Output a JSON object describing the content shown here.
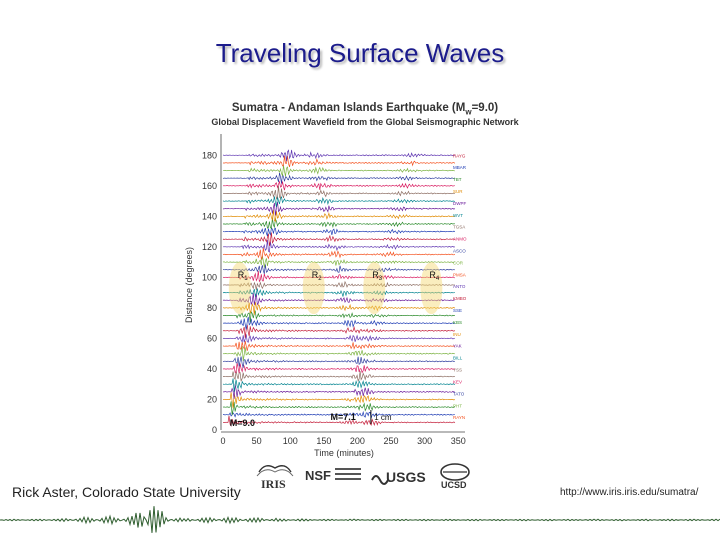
{
  "slide": {
    "title": "Traveling Surface Waves",
    "credit_left": "Rick Aster, Colorado State University",
    "credit_right": "http://www.iris.iris.edu/sumatra/"
  },
  "figure": {
    "title_main": "Sumatra - Andaman Islands Earthquake (M",
    "title_sub_w": "w",
    "title_end": "=9.0)",
    "subtitle": "Global Displacement Wavefield from the Global Seismographic Network",
    "wave_labels": [
      "R",
      "R",
      "R",
      "R"
    ],
    "wave_label_subs": [
      "1",
      "2",
      "3",
      "4"
    ],
    "magnitude_left": "M=9.0",
    "magnitude_right": "M=7.1",
    "scale_label": "1 cm",
    "stations_right": [
      "RAYG",
      "MBAR",
      "TBT",
      "SUR",
      "DWPF",
      "WVT",
      "TGSA",
      "ANMO",
      "ASCO",
      "COR",
      "PMSA",
      "ANTO",
      "KMBO",
      "SSE",
      "KBS",
      "INU",
      "YAK",
      "BILL",
      "YSS",
      "KEV",
      "TATO",
      "PHT",
      "RAYN"
    ],
    "logos": [
      "IRIS",
      "NSF",
      "USGS",
      "UCSD"
    ]
  },
  "chart_data": {
    "type": "line",
    "title": "Sumatra - Andaman Islands Earthquake (Mw=9.0)",
    "subtitle": "Global Displacement Wavefield from the Global Seismographic Network",
    "xlabel": "Time (minutes)",
    "ylabel": "Distance (degrees)",
    "xlim": [
      0,
      360
    ],
    "ylim": [
      0,
      190
    ],
    "x_ticks": [
      0,
      50,
      100,
      150,
      200,
      250,
      300,
      350
    ],
    "y_ticks": [
      0,
      20,
      40,
      60,
      80,
      100,
      120,
      140,
      160,
      180
    ],
    "wave_arrivals": [
      {
        "label": "R1",
        "time": 25,
        "distance": 93
      },
      {
        "label": "R2",
        "time": 135,
        "distance": 93
      },
      {
        "label": "R3",
        "time": 225,
        "distance": 93
      },
      {
        "label": "R4",
        "time": 310,
        "distance": 93
      }
    ],
    "trace_distances": [
      5,
      10,
      15,
      20,
      25,
      30,
      35,
      40,
      45,
      50,
      55,
      60,
      65,
      70,
      75,
      80,
      85,
      90,
      95,
      100,
      105,
      110,
      115,
      120,
      125,
      130,
      135,
      140,
      145,
      150,
      155,
      160,
      165,
      170,
      175,
      180
    ]
  },
  "colors": {
    "title": "#1c1c8c",
    "trace_palette": [
      "#c41e3a",
      "#1e3cb4",
      "#2a8a2a",
      "#e08a00",
      "#6a1b9a",
      "#00838f",
      "#8d6e63",
      "#d81b60",
      "#303f9f",
      "#7cb342",
      "#f4511e",
      "#5e35b1"
    ]
  }
}
